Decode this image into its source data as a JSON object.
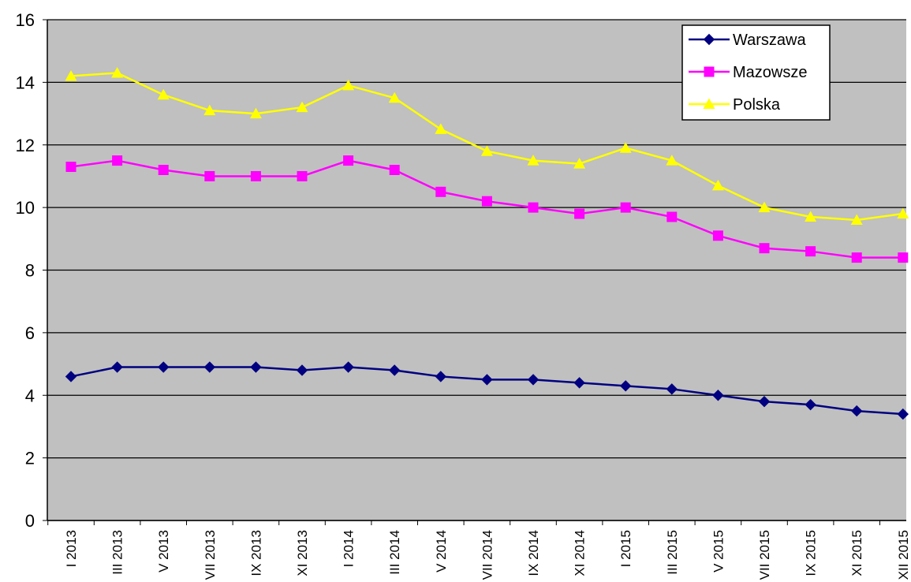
{
  "chart_data": {
    "type": "line",
    "title": "",
    "xlabel": "",
    "ylabel": "",
    "ylim": [
      0,
      16
    ],
    "yticks": [
      0,
      2,
      4,
      6,
      8,
      10,
      12,
      14,
      16
    ],
    "grid": true,
    "legend_position": "top-right",
    "plot_background": "#c0c0c0",
    "categories": [
      "I 2013",
      "III 2013",
      "V 2013",
      "VII 2013",
      "IX 2013",
      "XI 2013",
      "I 2014",
      "III 2014",
      "V 2014",
      "VII 2014",
      "IX 2014",
      "XI 2014",
      "I 2015",
      "III 2015",
      "V 2015",
      "VII 2015",
      "IX 2015",
      "XI 2015",
      "XII 2015"
    ],
    "series": [
      {
        "name": "Warszawa",
        "color": "#000080",
        "marker": "diamond",
        "values": [
          4.6,
          4.9,
          4.9,
          4.9,
          4.9,
          4.8,
          4.9,
          4.8,
          4.6,
          4.5,
          4.5,
          4.4,
          4.3,
          4.2,
          4.0,
          3.8,
          3.7,
          3.5,
          3.4
        ]
      },
      {
        "name": "Mazowsze",
        "color": "#ff00ff",
        "marker": "square",
        "values": [
          11.3,
          11.5,
          11.2,
          11.0,
          11.0,
          11.0,
          11.5,
          11.2,
          10.5,
          10.2,
          10.0,
          9.8,
          10.0,
          9.7,
          9.1,
          8.7,
          8.6,
          8.4,
          8.4
        ]
      },
      {
        "name": "Polska",
        "color": "#ffff00",
        "marker": "triangle",
        "values": [
          14.2,
          14.3,
          13.6,
          13.1,
          13.0,
          13.2,
          13.9,
          13.5,
          12.5,
          11.8,
          11.5,
          11.4,
          11.9,
          11.5,
          10.7,
          10.0,
          9.7,
          9.6,
          9.8
        ]
      }
    ]
  }
}
